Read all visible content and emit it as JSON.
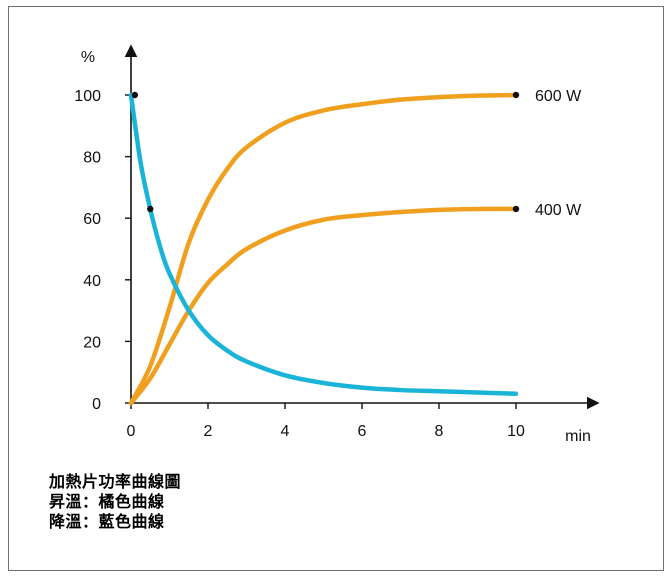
{
  "chart_data": {
    "type": "line",
    "ylabel": "%",
    "xlabel": "min",
    "xlim": [
      0,
      10
    ],
    "ylim": [
      0,
      100
    ],
    "x_ticks": [
      0,
      2,
      4,
      6,
      8,
      10
    ],
    "y_ticks": [
      0,
      20,
      40,
      60,
      80,
      100
    ],
    "grid": false,
    "series": [
      {
        "name": "600 W",
        "color": "#f0a01e",
        "x": [
          0,
          0.5,
          1,
          1.5,
          2,
          2.5,
          3,
          4,
          5,
          6,
          7,
          8,
          9,
          10
        ],
        "values": [
          0,
          12,
          31,
          52,
          66,
          76,
          83,
          91,
          95,
          97,
          98.5,
          99.3,
          99.8,
          100
        ]
      },
      {
        "name": "400 W",
        "color": "#f0a01e",
        "x": [
          0,
          0.5,
          1,
          1.5,
          2,
          2.5,
          3,
          4,
          5,
          6,
          7,
          8,
          9,
          10
        ],
        "values": [
          0,
          8,
          19,
          30,
          39,
          45,
          50,
          56,
          59.5,
          61,
          62,
          62.7,
          63,
          63
        ]
      },
      {
        "name": "",
        "color": "#1ab4d8",
        "x": [
          0,
          0.25,
          0.5,
          0.75,
          1,
          1.5,
          2,
          2.5,
          3,
          4,
          5,
          6,
          7,
          8,
          9,
          10
        ],
        "values": [
          100,
          78,
          63,
          51,
          42,
          30,
          22,
          17,
          13.5,
          9,
          6.5,
          5,
          4.2,
          3.8,
          3.4,
          3
        ]
      }
    ],
    "markers": [
      {
        "x": 0.1,
        "y": 100
      },
      {
        "x": 0.5,
        "y": 63
      },
      {
        "x": 10,
        "y": 100
      },
      {
        "x": 10,
        "y": 63
      }
    ]
  },
  "notes": {
    "title": "加熱片功率曲線圖",
    "line1": "昇溫：橘色曲線",
    "line2": "降溫：藍色曲線"
  }
}
